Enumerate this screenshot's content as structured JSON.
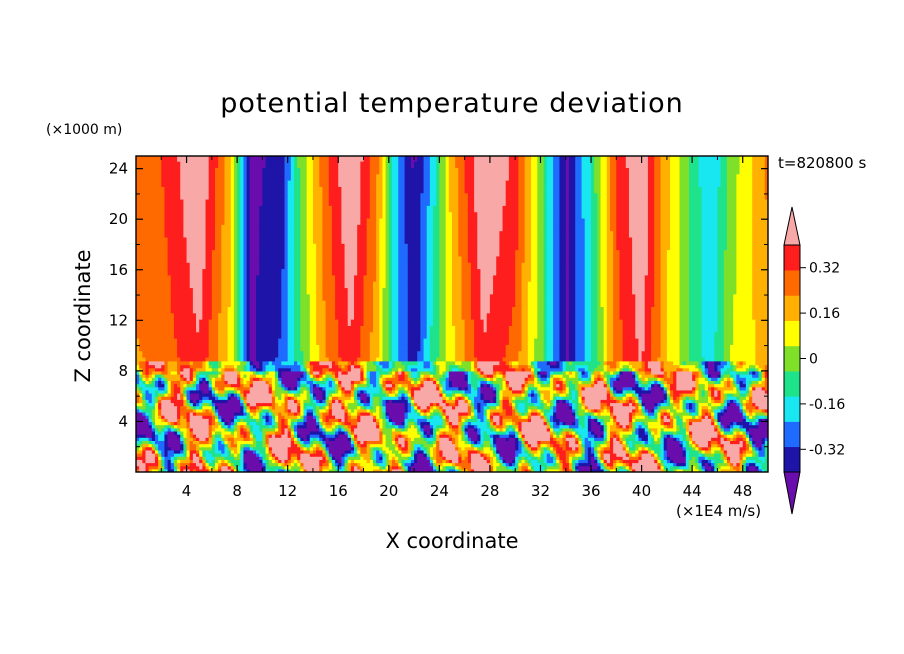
{
  "chart_data": {
    "type": "heatmap",
    "title": "potential temperature deviation",
    "xlabel": "X coordinate",
    "ylabel": "Z coordinate",
    "x_unit": "(×1E4 m/s)",
    "y_unit": "(×1000 m)",
    "time_label": "t=820800 s",
    "xlim": [
      0,
      50
    ],
    "ylim": [
      0,
      25
    ],
    "x_ticks": [
      4,
      8,
      12,
      16,
      20,
      24,
      28,
      32,
      36,
      40,
      44,
      48
    ],
    "y_ticks": [
      4,
      8,
      12,
      16,
      20,
      24
    ],
    "tropopause_z": 8.6,
    "colorbar": {
      "levels": [
        -0.4,
        -0.32,
        -0.24,
        -0.16,
        -0.08,
        0,
        0.08,
        0.16,
        0.24,
        0.32,
        0.4
      ],
      "labels": [
        "-0.32",
        "-0.16",
        "0",
        "0.16",
        "0.32"
      ],
      "label_values": [
        -0.32,
        -0.16,
        0,
        0.16,
        0.32
      ],
      "colors": [
        "#6a0dad",
        "#1e14a8",
        "#1f6bff",
        "#18e6f0",
        "#1fe38a",
        "#7fe02a",
        "#ffff00",
        "#ffb000",
        "#ff6a00",
        "#ff1e1e",
        "#f9a8a8"
      ],
      "extend": "both"
    },
    "upper_region_columns": [
      {
        "x": 0,
        "top": 0.2,
        "bottom": 0.15
      },
      {
        "x": 2,
        "top": 0.24,
        "bottom": 0.18
      },
      {
        "x": 5,
        "top": 0.42,
        "bottom": 0.3
      },
      {
        "x": 7.5,
        "top": 0.1,
        "bottom": 0.05
      },
      {
        "x": 9,
        "top": -0.42,
        "bottom": -0.42
      },
      {
        "x": 11.5,
        "top": -0.38,
        "bottom": -0.3
      },
      {
        "x": 13,
        "top": -0.05,
        "bottom": -0.1
      },
      {
        "x": 15,
        "top": 0.22,
        "bottom": 0.15
      },
      {
        "x": 17,
        "top": 0.42,
        "bottom": 0.3
      },
      {
        "x": 19,
        "top": 0.2,
        "bottom": 0.1
      },
      {
        "x": 20.5,
        "top": -0.2,
        "bottom": -0.2
      },
      {
        "x": 22,
        "top": -0.42,
        "bottom": -0.38
      },
      {
        "x": 23.5,
        "top": -0.2,
        "bottom": -0.12
      },
      {
        "x": 25,
        "top": 0.12,
        "bottom": 0.05
      },
      {
        "x": 27.5,
        "top": 0.42,
        "bottom": 0.3
      },
      {
        "x": 30,
        "top": 0.3,
        "bottom": 0.2
      },
      {
        "x": 32,
        "top": -0.05,
        "bottom": -0.05
      },
      {
        "x": 34,
        "top": -0.42,
        "bottom": -0.42
      },
      {
        "x": 36,
        "top": -0.15,
        "bottom": -0.18
      },
      {
        "x": 38,
        "top": 0.25,
        "bottom": 0.2
      },
      {
        "x": 40,
        "top": 0.42,
        "bottom": 0.33
      },
      {
        "x": 42,
        "top": 0.1,
        "bottom": 0.08
      },
      {
        "x": 44,
        "top": -0.1,
        "bottom": -0.1
      },
      {
        "x": 45.5,
        "top": -0.25,
        "bottom": -0.2
      },
      {
        "x": 47,
        "top": -0.05,
        "bottom": 0.0
      },
      {
        "x": 50,
        "top": 0.18,
        "bottom": 0.12
      }
    ]
  }
}
